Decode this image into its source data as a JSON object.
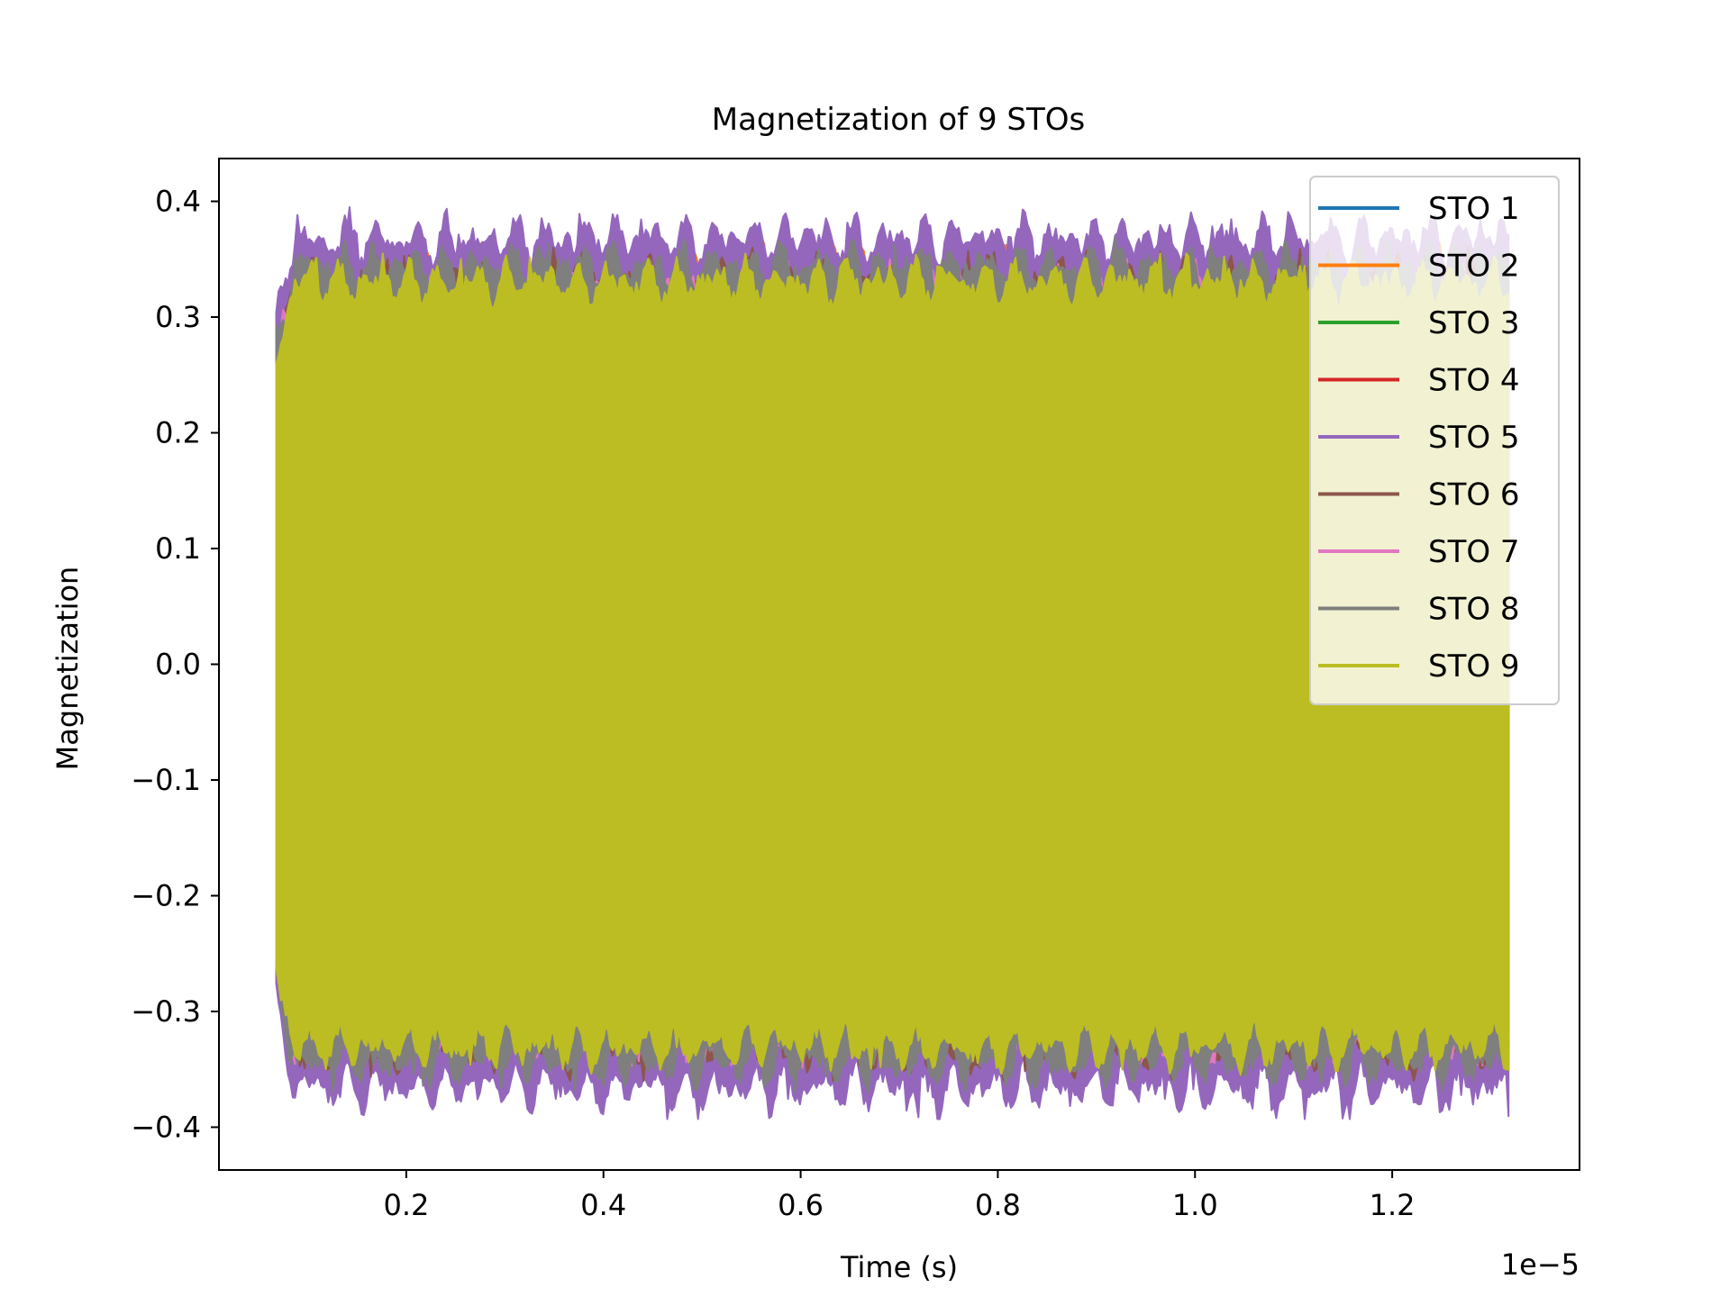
{
  "chart_data": {
    "type": "line",
    "title": "Magnetization of 9 STOs",
    "xlabel": "Time (s)",
    "ylabel": "Magnetization",
    "x_offset_text": "1e−5",
    "x_range": [
      0.068,
      1.318
    ],
    "xlim": [
      0.01,
      1.39
    ],
    "ylim": [
      -0.437,
      0.437
    ],
    "xticks": [
      0.2,
      0.4,
      0.6,
      0.8,
      1.0,
      1.2
    ],
    "xtick_labels": [
      "0.2",
      "0.4",
      "0.6",
      "0.8",
      "1.0",
      "1.2"
    ],
    "yticks": [
      -0.4,
      -0.3,
      -0.2,
      -0.1,
      0.0,
      0.1,
      0.2,
      0.3,
      0.4
    ],
    "ytick_labels": [
      "−0.4",
      "−0.3",
      "−0.2",
      "−0.1",
      "0.0",
      "0.1",
      "0.2",
      "0.3",
      "0.4"
    ],
    "grid": false,
    "legend_position": "top-right",
    "series": [
      {
        "name": "STO 1",
        "color": "#1f77b4",
        "envelope_max": 0.34,
        "envelope_min": -0.34
      },
      {
        "name": "STO 2",
        "color": "#ff7f0e",
        "envelope_max": 0.375,
        "envelope_min": -0.36
      },
      {
        "name": "STO 3",
        "color": "#2ca02c",
        "envelope_max": 0.34,
        "envelope_min": -0.34
      },
      {
        "name": "STO 4",
        "color": "#d62728",
        "envelope_max": 0.36,
        "envelope_min": -0.36
      },
      {
        "name": "STO 5",
        "color": "#9467bd",
        "envelope_max": 0.395,
        "envelope_min": -0.393
      },
      {
        "name": "STO 6",
        "color": "#8c564b",
        "envelope_max": 0.36,
        "envelope_min": -0.36
      },
      {
        "name": "STO 7",
        "color": "#e377c2",
        "envelope_max": 0.35,
        "envelope_min": -0.35
      },
      {
        "name": "STO 8",
        "color": "#7f7f7f",
        "envelope_max": 0.37,
        "envelope_min": -0.37
      },
      {
        "name": "STO 9",
        "color": "#bcbd22",
        "envelope_max": 0.355,
        "envelope_min": -0.355
      }
    ]
  }
}
